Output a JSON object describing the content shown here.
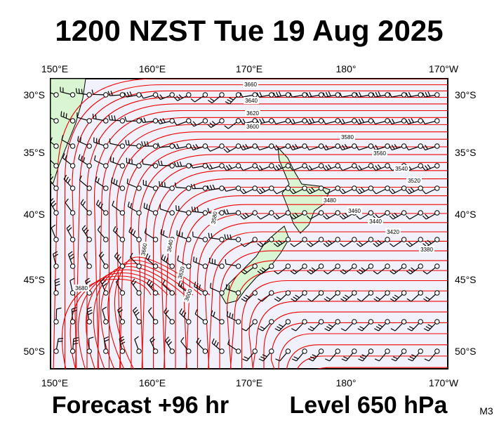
{
  "header": {
    "title": "1200 NZST Tue 19 Aug 2025"
  },
  "map": {
    "top_lon_labels": [
      "150°E",
      "160°E",
      "170°E",
      "180°",
      "170°W"
    ],
    "bottom_lon_labels": [
      "150°E",
      "160°E",
      "170°E",
      "180°",
      "170°W"
    ],
    "left_lat_labels": [
      "30°S",
      "35°S",
      "40°S",
      "45°S",
      "50°S"
    ],
    "right_lat_labels": [
      "30°S",
      "35°S",
      "40°S",
      "45°S",
      "50°S"
    ],
    "contour_labels": [
      3660,
      3640,
      3620,
      3600,
      3580,
      3560,
      3540,
      3520,
      3480,
      3460,
      3440,
      3420,
      3380,
      3680,
      3660,
      3640,
      3620,
      3600,
      3580
    ]
  },
  "footer": {
    "forecast": "Forecast +96 hr",
    "level": "Level 650 hPa",
    "code": "M3"
  }
}
